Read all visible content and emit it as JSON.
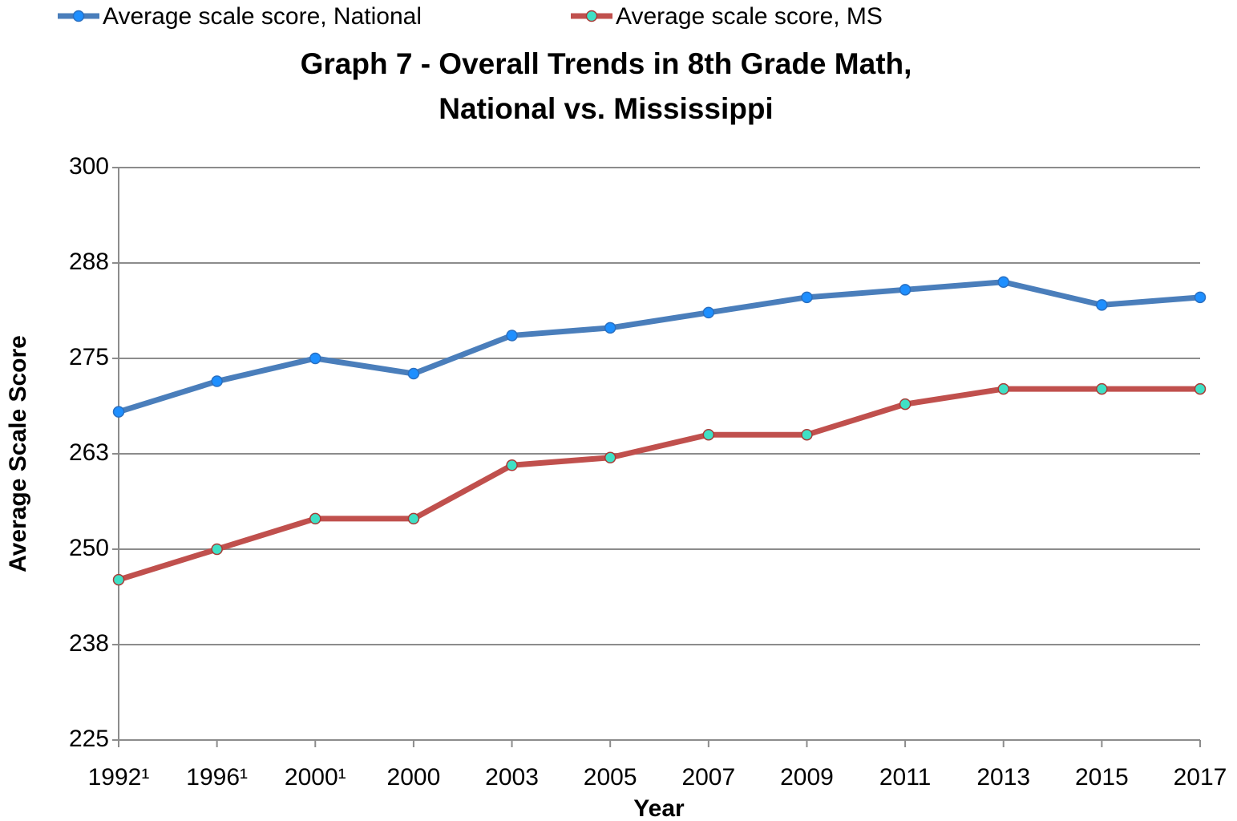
{
  "chart_data": {
    "type": "line",
    "title": "Graph 7 - Overall Trends in 8th Grade Math,",
    "subtitle": "National vs. Mississippi",
    "x_label": "Year",
    "y_label": "Average Scale Score",
    "categories": [
      "1992¹",
      "1996¹",
      "2000¹",
      "2000",
      "2003",
      "2005",
      "2007",
      "2009",
      "2011",
      "2013",
      "2015",
      "2017"
    ],
    "series": [
      {
        "name": "Average scale score, National",
        "color": "#4a7ebb",
        "marker_color": "#1e8fff",
        "marker_edge": "#2a6fc0",
        "values": [
          268,
          272,
          275,
          273,
          278,
          279,
          281,
          283,
          284,
          285,
          282,
          283
        ]
      },
      {
        "name": "Average scale score, MS",
        "color": "#c0504d",
        "marker_color": "#3fe0c5",
        "marker_edge": "#a83a36",
        "values": [
          246,
          250,
          254,
          254,
          261,
          262,
          265,
          265,
          269,
          271,
          271,
          271
        ]
      }
    ],
    "ylim": [
      225,
      300
    ],
    "yticks": [
      225,
      {
        "value": 237.5,
        "label": "238"
      },
      250,
      {
        "value": 262.5,
        "label": "263"
      },
      275,
      {
        "value": 287.5,
        "label": "288"
      },
      300
    ],
    "grid": true,
    "legend": "top-left"
  }
}
